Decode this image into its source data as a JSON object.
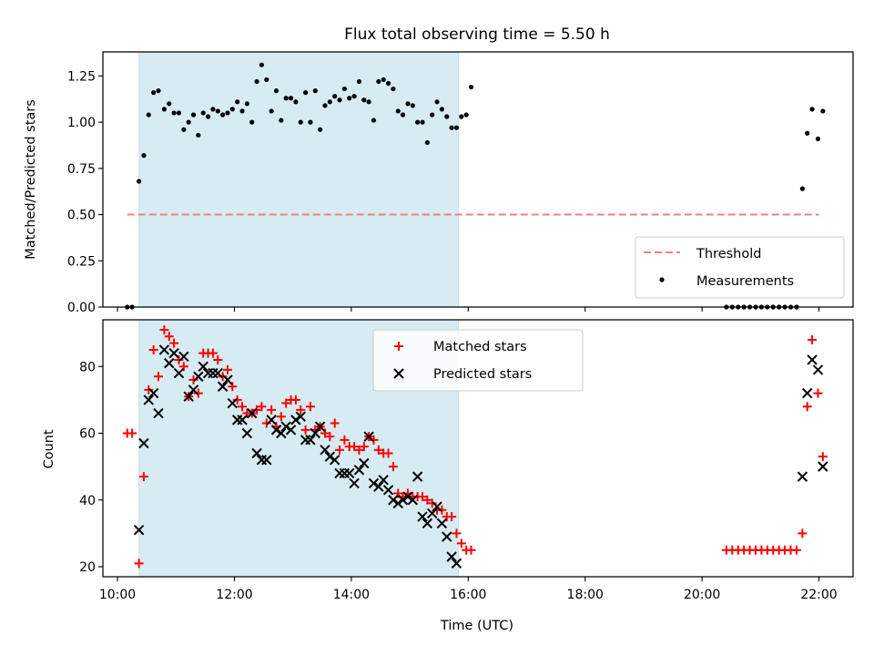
{
  "chart_data": [
    {
      "type": "scatter",
      "title": "Flux total observing time = 5.50 h",
      "xlabel": "",
      "ylabel": "Matched/Predicted stars",
      "xlim": [
        "09:45",
        "22:35"
      ],
      "ylim": [
        0,
        1.38
      ],
      "yticks": [
        "0.00",
        "0.25",
        "0.50",
        "0.75",
        "1.00",
        "1.25"
      ],
      "xticks": [
        "10:00",
        "12:00",
        "14:00",
        "16:00",
        "18:00",
        "20:00",
        "22:00"
      ],
      "shaded_interval": {
        "start": "10:22",
        "end": "15:50",
        "color": "#add8e6"
      },
      "legend": {
        "position": "lower-right",
        "entries": [
          "Threshold",
          "Measurements"
        ]
      },
      "threshold": {
        "name": "Threshold",
        "value": 0.5,
        "x_start": "10:10",
        "x_end": "22:00",
        "color": "#f08080"
      },
      "series": [
        {
          "name": "Measurements",
          "color": "#000000",
          "points": [
            [
              "10:10",
              0.0
            ],
            [
              "10:15",
              0.0
            ],
            [
              "10:22",
              0.68
            ],
            [
              "10:27",
              0.82
            ],
            [
              "10:32",
              1.04
            ],
            [
              "10:37",
              1.16
            ],
            [
              "10:42",
              1.17
            ],
            [
              "10:48",
              1.07
            ],
            [
              "10:53",
              1.1
            ],
            [
              "10:58",
              1.05
            ],
            [
              "11:03",
              1.05
            ],
            [
              "11:08",
              0.96
            ],
            [
              "11:13",
              1.0
            ],
            [
              "11:18",
              1.04
            ],
            [
              "11:23",
              0.93
            ],
            [
              "11:28",
              1.05
            ],
            [
              "11:33",
              1.03
            ],
            [
              "11:38",
              1.07
            ],
            [
              "11:43",
              1.06
            ],
            [
              "11:48",
              1.04
            ],
            [
              "11:53",
              1.05
            ],
            [
              "11:58",
              1.07
            ],
            [
              "12:03",
              1.11
            ],
            [
              "12:08",
              1.06
            ],
            [
              "12:13",
              1.1
            ],
            [
              "12:18",
              1.0
            ],
            [
              "12:23",
              1.22
            ],
            [
              "12:28",
              1.31
            ],
            [
              "12:33",
              1.23
            ],
            [
              "12:38",
              1.06
            ],
            [
              "12:43",
              1.17
            ],
            [
              "12:48",
              1.01
            ],
            [
              "12:53",
              1.13
            ],
            [
              "12:58",
              1.13
            ],
            [
              "13:03",
              1.11
            ],
            [
              "13:08",
              1.0
            ],
            [
              "13:13",
              1.16
            ],
            [
              "13:18",
              1.0
            ],
            [
              "13:23",
              1.17
            ],
            [
              "13:28",
              0.96
            ],
            [
              "13:33",
              1.09
            ],
            [
              "13:38",
              1.11
            ],
            [
              "13:43",
              1.14
            ],
            [
              "13:48",
              1.12
            ],
            [
              "13:53",
              1.18
            ],
            [
              "13:58",
              1.13
            ],
            [
              "14:03",
              1.14
            ],
            [
              "14:08",
              1.22
            ],
            [
              "14:13",
              1.12
            ],
            [
              "14:18",
              1.11
            ],
            [
              "14:23",
              1.01
            ],
            [
              "14:28",
              1.22
            ],
            [
              "14:33",
              1.23
            ],
            [
              "14:38",
              1.21
            ],
            [
              "14:43",
              1.18
            ],
            [
              "14:48",
              1.06
            ],
            [
              "14:53",
              1.04
            ],
            [
              "14:58",
              1.1
            ],
            [
              "15:03",
              1.09
            ],
            [
              "15:08",
              1.0
            ],
            [
              "15:13",
              1.0
            ],
            [
              "15:18",
              0.89
            ],
            [
              "15:23",
              1.04
            ],
            [
              "15:28",
              1.11
            ],
            [
              "15:33",
              1.07
            ],
            [
              "15:38",
              1.03
            ],
            [
              "15:43",
              0.97
            ],
            [
              "15:48",
              0.97
            ],
            [
              "15:53",
              1.03
            ],
            [
              "15:58",
              1.04
            ],
            [
              "16:03",
              1.19
            ],
            [
              "20:25",
              0.0
            ],
            [
              "20:31",
              0.0
            ],
            [
              "20:37",
              0.0
            ],
            [
              "20:43",
              0.0
            ],
            [
              "20:49",
              0.0
            ],
            [
              "20:55",
              0.0
            ],
            [
              "21:01",
              0.0
            ],
            [
              "21:07",
              0.0
            ],
            [
              "21:13",
              0.0
            ],
            [
              "21:19",
              0.0
            ],
            [
              "21:25",
              0.0
            ],
            [
              "21:31",
              0.0
            ],
            [
              "21:37",
              0.0
            ],
            [
              "21:43",
              0.64
            ],
            [
              "21:48",
              0.94
            ],
            [
              "21:53",
              1.07
            ],
            [
              "21:59",
              0.91
            ],
            [
              "22:04",
              1.06
            ]
          ]
        }
      ]
    },
    {
      "type": "scatter",
      "title": "",
      "xlabel": "Time (UTC)",
      "ylabel": "Count",
      "xlim": [
        "09:45",
        "22:35"
      ],
      "ylim": [
        17,
        94
      ],
      "yticks": [
        "20",
        "40",
        "60",
        "80"
      ],
      "xticks": [
        "10:00",
        "12:00",
        "14:00",
        "16:00",
        "18:00",
        "20:00",
        "22:00"
      ],
      "shaded_interval": {
        "start": "10:22",
        "end": "15:50",
        "color": "#add8e6"
      },
      "legend": {
        "position": "upper-center",
        "entries": [
          "Matched stars",
          "Predicted stars"
        ]
      },
      "series": [
        {
          "name": "Matched stars",
          "marker": "plus",
          "color": "#ff0000",
          "points": [
            [
              "10:10",
              60
            ],
            [
              "10:15",
              60
            ],
            [
              "10:22",
              21
            ],
            [
              "10:27",
              47
            ],
            [
              "10:32",
              73
            ],
            [
              "10:37",
              85
            ],
            [
              "10:42",
              77
            ],
            [
              "10:48",
              91
            ],
            [
              "10:53",
              89
            ],
            [
              "10:58",
              87
            ],
            [
              "11:03",
              82
            ],
            [
              "11:08",
              80
            ],
            [
              "11:13",
              71
            ],
            [
              "11:18",
              76
            ],
            [
              "11:23",
              72
            ],
            [
              "11:28",
              84
            ],
            [
              "11:33",
              84
            ],
            [
              "11:38",
              84
            ],
            [
              "11:43",
              82
            ],
            [
              "11:48",
              77
            ],
            [
              "11:53",
              79
            ],
            [
              "11:58",
              74
            ],
            [
              "12:03",
              70
            ],
            [
              "12:08",
              68
            ],
            [
              "12:13",
              66
            ],
            [
              "12:18",
              66
            ],
            [
              "12:23",
              67
            ],
            [
              "12:28",
              68
            ],
            [
              "12:33",
              63
            ],
            [
              "12:38",
              67
            ],
            [
              "12:43",
              62
            ],
            [
              "12:48",
              65
            ],
            [
              "12:53",
              69
            ],
            [
              "12:58",
              70
            ],
            [
              "13:03",
              70
            ],
            [
              "13:08",
              67
            ],
            [
              "13:13",
              61
            ],
            [
              "13:18",
              68
            ],
            [
              "13:23",
              61
            ],
            [
              "13:28",
              62
            ],
            [
              "13:33",
              60
            ],
            [
              "13:38",
              59
            ],
            [
              "13:43",
              63
            ],
            [
              "13:48",
              55
            ],
            [
              "13:53",
              58
            ],
            [
              "13:58",
              56
            ],
            [
              "14:03",
              56
            ],
            [
              "14:08",
              55
            ],
            [
              "14:13",
              56
            ],
            [
              "14:18",
              59
            ],
            [
              "14:23",
              58
            ],
            [
              "14:28",
              55
            ],
            [
              "14:33",
              54
            ],
            [
              "14:38",
              54
            ],
            [
              "14:43",
              50
            ],
            [
              "14:48",
              42
            ],
            [
              "14:53",
              41
            ],
            [
              "14:58",
              42
            ],
            [
              "15:03",
              41
            ],
            [
              "15:08",
              41
            ],
            [
              "15:13",
              41
            ],
            [
              "15:18",
              40
            ],
            [
              "15:23",
              39
            ],
            [
              "15:28",
              37
            ],
            [
              "15:33",
              37
            ],
            [
              "15:38",
              35
            ],
            [
              "15:43",
              35
            ],
            [
              "15:48",
              30
            ],
            [
              "15:53",
              27
            ],
            [
              "15:58",
              25
            ],
            [
              "16:03",
              25
            ],
            [
              "20:25",
              25
            ],
            [
              "20:31",
              25
            ],
            [
              "20:37",
              25
            ],
            [
              "20:43",
              25
            ],
            [
              "20:49",
              25
            ],
            [
              "20:55",
              25
            ],
            [
              "21:01",
              25
            ],
            [
              "21:07",
              25
            ],
            [
              "21:13",
              25
            ],
            [
              "21:19",
              25
            ],
            [
              "21:25",
              25
            ],
            [
              "21:31",
              25
            ],
            [
              "21:37",
              25
            ],
            [
              "21:43",
              30
            ],
            [
              "21:48",
              68
            ],
            [
              "21:53",
              88
            ],
            [
              "21:59",
              72
            ],
            [
              "22:04",
              53
            ]
          ]
        },
        {
          "name": "Predicted stars",
          "marker": "x",
          "color": "#000000",
          "points": [
            [
              "10:22",
              31
            ],
            [
              "10:27",
              57
            ],
            [
              "10:32",
              70
            ],
            [
              "10:37",
              72
            ],
            [
              "10:42",
              66
            ],
            [
              "10:48",
              85
            ],
            [
              "10:53",
              81
            ],
            [
              "10:58",
              84
            ],
            [
              "11:03",
              78
            ],
            [
              "11:08",
              83
            ],
            [
              "11:13",
              71
            ],
            [
              "11:18",
              73
            ],
            [
              "11:23",
              77
            ],
            [
              "11:28",
              80
            ],
            [
              "11:33",
              78
            ],
            [
              "11:38",
              78
            ],
            [
              "11:43",
              78
            ],
            [
              "11:48",
              74
            ],
            [
              "11:53",
              76
            ],
            [
              "11:58",
              69
            ],
            [
              "12:03",
              64
            ],
            [
              "12:08",
              64
            ],
            [
              "12:13",
              60
            ],
            [
              "12:18",
              66
            ],
            [
              "12:23",
              54
            ],
            [
              "12:28",
              52
            ],
            [
              "12:33",
              52
            ],
            [
              "12:38",
              64
            ],
            [
              "12:43",
              61
            ],
            [
              "12:48",
              60
            ],
            [
              "12:53",
              62
            ],
            [
              "12:58",
              61
            ],
            [
              "13:03",
              64
            ],
            [
              "13:08",
              65
            ],
            [
              "13:13",
              58
            ],
            [
              "13:18",
              58
            ],
            [
              "13:23",
              60
            ],
            [
              "13:28",
              62
            ],
            [
              "13:33",
              55
            ],
            [
              "13:38",
              53
            ],
            [
              "13:43",
              52
            ],
            [
              "13:48",
              48
            ],
            [
              "13:53",
              48
            ],
            [
              "13:58",
              48
            ],
            [
              "14:03",
              45
            ],
            [
              "14:08",
              49
            ],
            [
              "14:13",
              51
            ],
            [
              "14:18",
              59
            ],
            [
              "14:23",
              45
            ],
            [
              "14:28",
              44
            ],
            [
              "14:33",
              46
            ],
            [
              "14:38",
              43
            ],
            [
              "14:43",
              40
            ],
            [
              "14:48",
              39
            ],
            [
              "14:53",
              40
            ],
            [
              "14:58",
              41
            ],
            [
              "15:03",
              40
            ],
            [
              "15:08",
              47
            ],
            [
              "15:13",
              35
            ],
            [
              "15:18",
              33
            ],
            [
              "15:23",
              36
            ],
            [
              "15:28",
              38
            ],
            [
              "15:33",
              33
            ],
            [
              "15:38",
              29
            ],
            [
              "15:43",
              23
            ],
            [
              "15:48",
              21
            ],
            [
              "21:43",
              47
            ],
            [
              "21:48",
              72
            ],
            [
              "21:53",
              82
            ],
            [
              "21:59",
              79
            ],
            [
              "22:04",
              50
            ]
          ]
        }
      ]
    }
  ]
}
